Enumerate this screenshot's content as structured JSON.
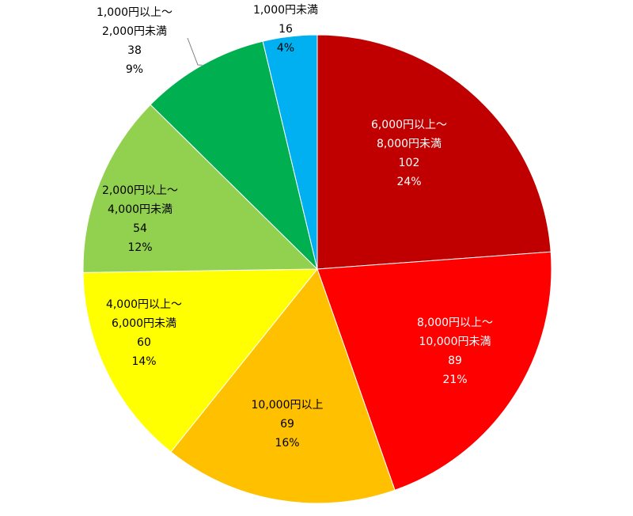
{
  "chart_data": {
    "type": "pie",
    "title": "",
    "start_angle_deg": 0,
    "direction": "clockwise",
    "slices": [
      {
        "label_lines": [
          "6,000円以上～",
          "8,000円未満"
        ],
        "value": 102,
        "percent": "24%",
        "color": "#C00000",
        "label_color": "#ffffff"
      },
      {
        "label_lines": [
          "8,000円以上～",
          "10,000円未満"
        ],
        "value": 89,
        "percent": "21%",
        "color": "#FF0000",
        "label_color": "#ffffff"
      },
      {
        "label_lines": [
          "10,000円以上"
        ],
        "value": 69,
        "percent": "16%",
        "color": "#FFC000",
        "label_color": "#000000"
      },
      {
        "label_lines": [
          "4,000円以上～",
          "6,000円未満"
        ],
        "value": 60,
        "percent": "14%",
        "color": "#FFFF00",
        "label_color": "#000000"
      },
      {
        "label_lines": [
          "2,000円以上～",
          "4,000円未満"
        ],
        "value": 54,
        "percent": "12%",
        "color": "#92D050",
        "label_color": "#000000"
      },
      {
        "label_lines": [
          "1,000円以上～",
          "2,000円未満"
        ],
        "value": 38,
        "percent": "9%",
        "color": "#00B050",
        "label_color": "#000000"
      },
      {
        "label_lines": [
          "1,000円未満"
        ],
        "value": 16,
        "percent": "4%",
        "color": "#00B0F0",
        "label_color": "#000000"
      }
    ]
  }
}
